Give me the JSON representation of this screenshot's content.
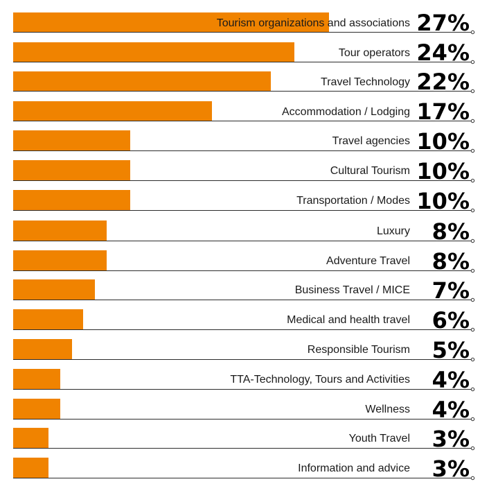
{
  "chart_data": {
    "type": "bar",
    "orientation": "horizontal",
    "title": "",
    "xlabel": "",
    "ylabel": "",
    "xlim": [
      0,
      27
    ],
    "grid": false,
    "legend": "none",
    "bar_color": "#F08300",
    "categories": [
      "Tourism organizations and associations",
      "Tour operators",
      "Travel Technology",
      "Accommodation / Lodging",
      "Travel agencies",
      "Cultural Tourism",
      "Transportation / Modes",
      "Luxury",
      "Adventure Travel",
      "Business Travel / MICE",
      "Medical and health travel",
      "Responsible Tourism",
      "TTA-Technology, Tours and Activities",
      "Wellness",
      "Youth Travel",
      "Information and advice"
    ],
    "values": [
      27,
      24,
      22,
      17,
      10,
      10,
      10,
      8,
      8,
      7,
      6,
      5,
      4,
      4,
      3,
      3
    ],
    "value_labels": [
      "27%",
      "24%",
      "22%",
      "17%",
      "10%",
      "10%",
      "10%",
      "8%",
      "8%",
      "7%",
      "6%",
      "5%",
      "4%",
      "4%",
      "3%",
      "3%"
    ]
  }
}
